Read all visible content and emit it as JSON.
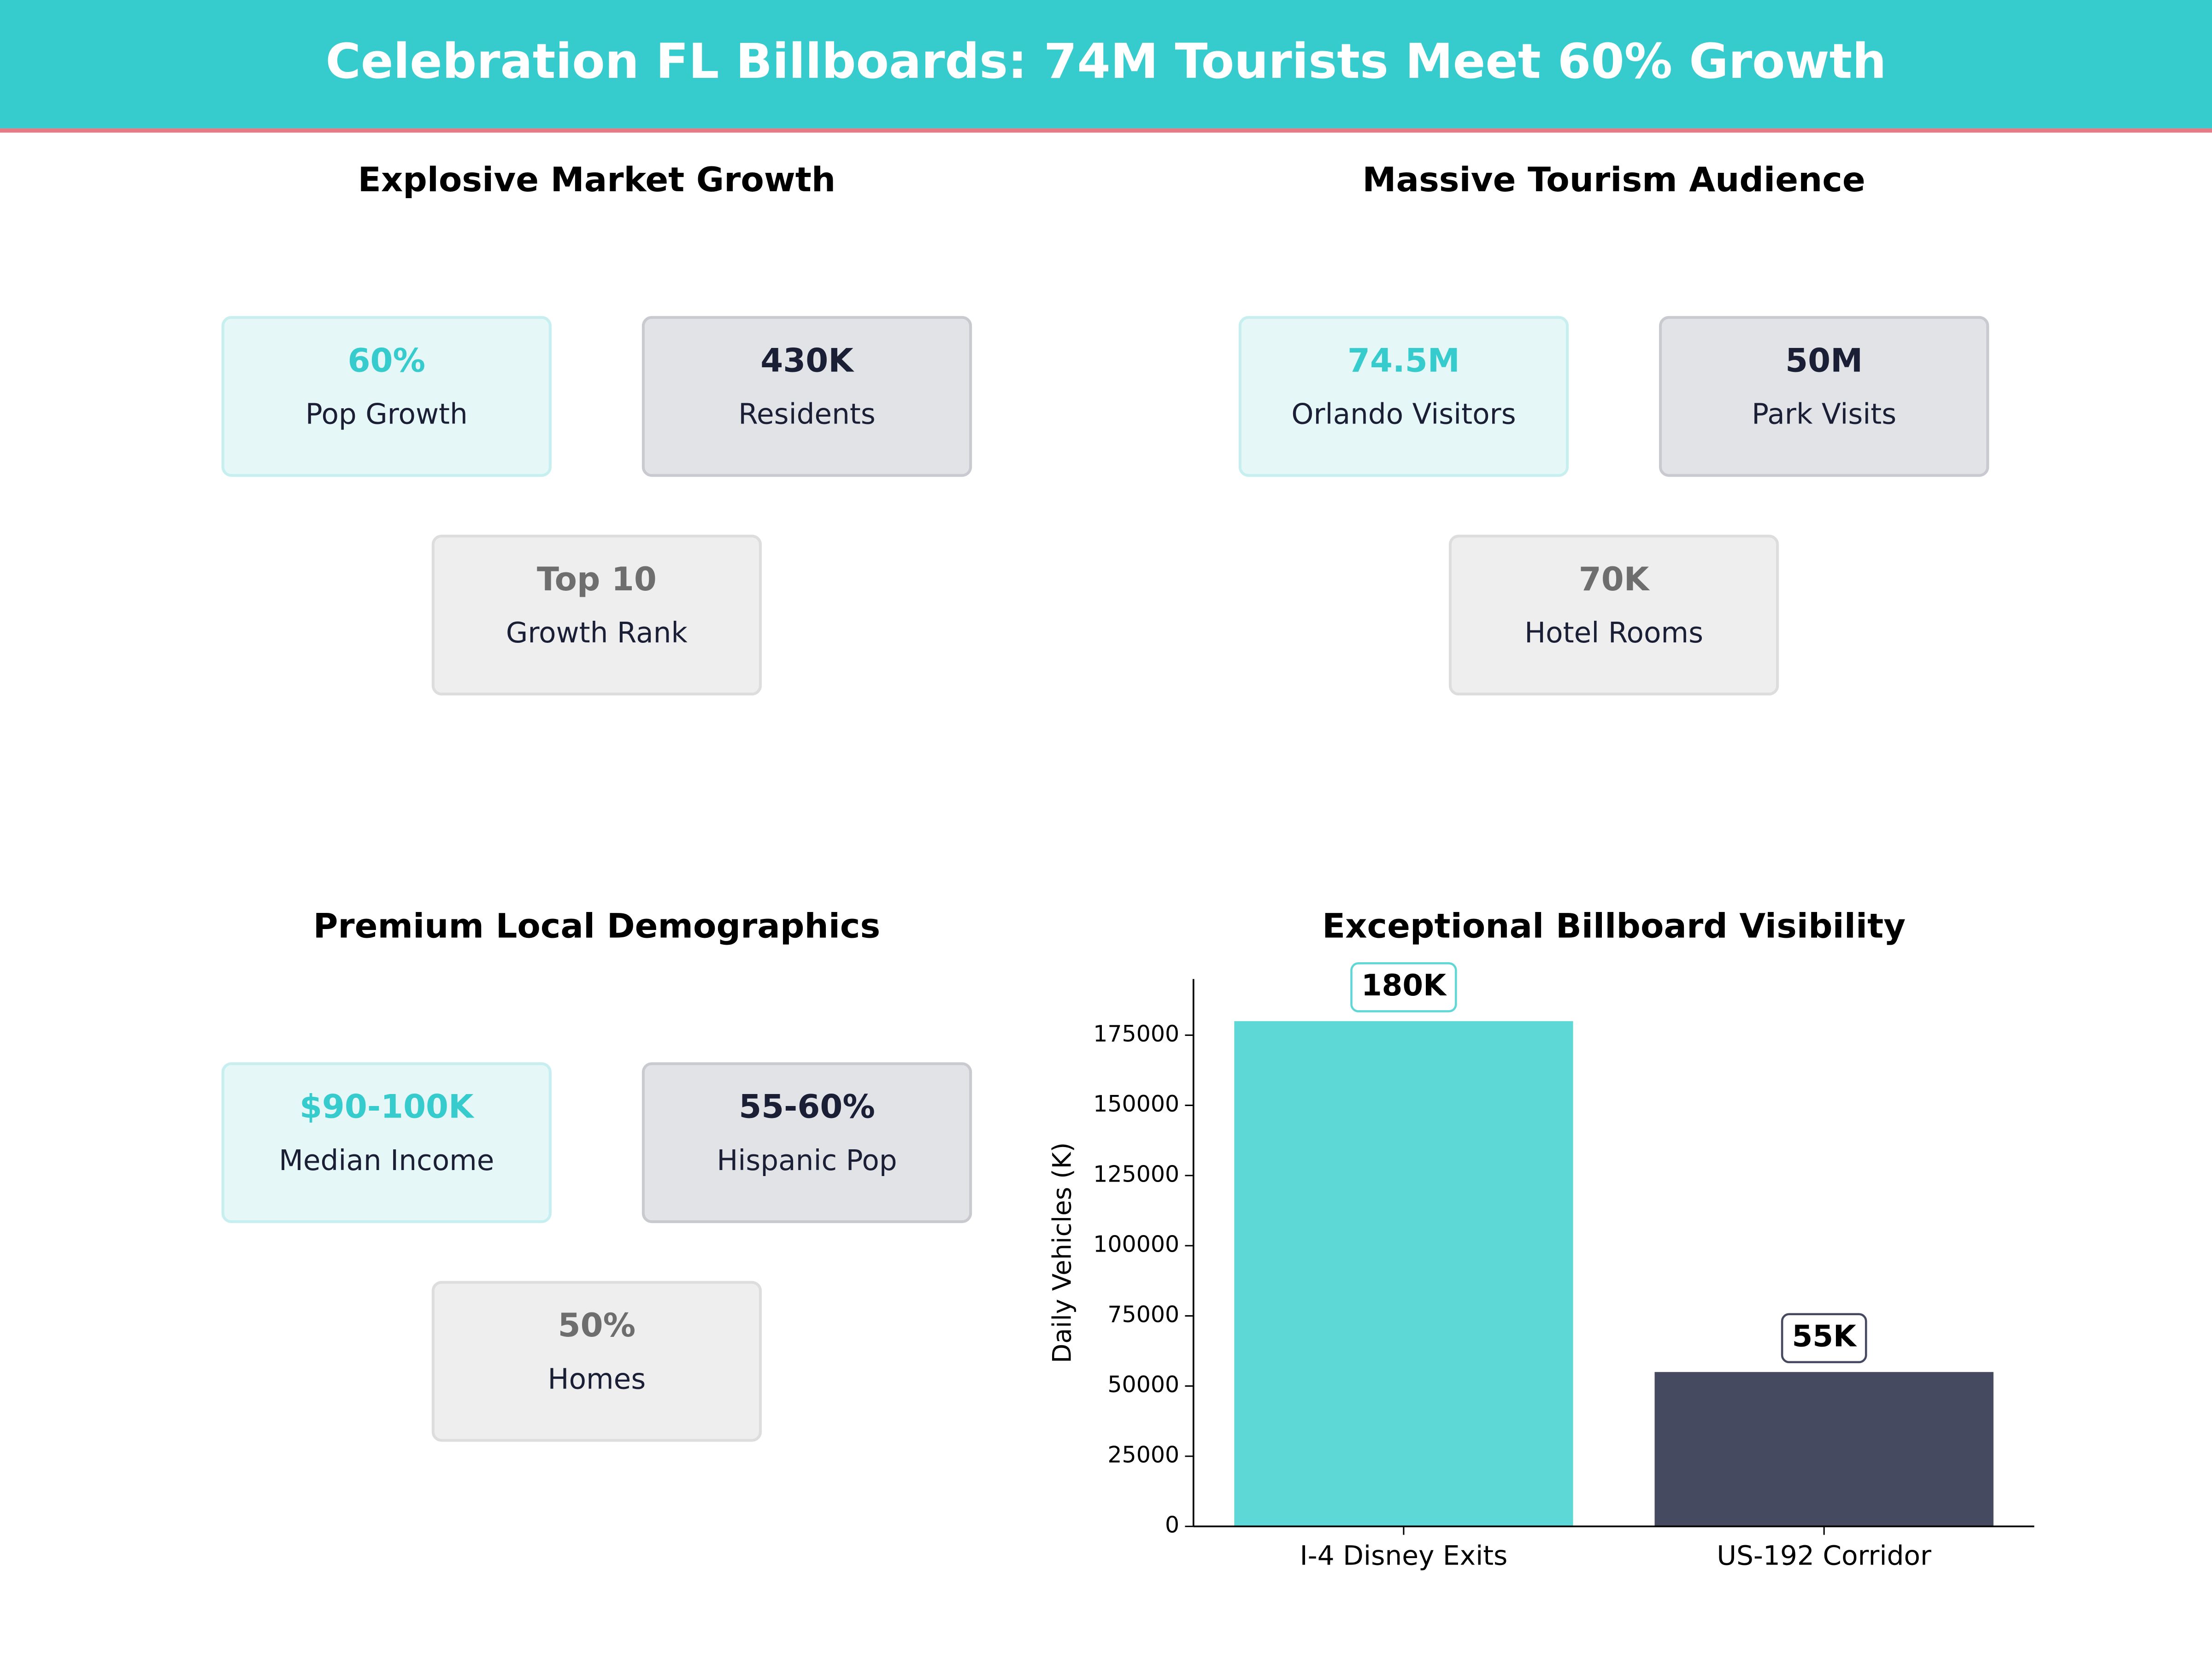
{
  "header": {
    "title": "Celebration FL Billboards: 74M Tourists Meet 60% Growth"
  },
  "panels": [
    {
      "title": "Explosive Market Growth",
      "cards": [
        {
          "value": "60%",
          "label": "Pop Growth"
        },
        {
          "value": "430K",
          "label": "Residents"
        },
        {
          "value": "Top 10",
          "label": "Growth Rank"
        }
      ]
    },
    {
      "title": "Massive Tourism Audience",
      "cards": [
        {
          "value": "74.5M",
          "label": "Orlando Visitors"
        },
        {
          "value": "50M",
          "label": "Park Visits"
        },
        {
          "value": "70K",
          "label": "Hotel Rooms"
        }
      ]
    },
    {
      "title": "Premium Local Demographics",
      "cards": [
        {
          "value": "$90-100K",
          "label": "Median Income"
        },
        {
          "value": "55-60%",
          "label": "Hispanic Pop"
        },
        {
          "value": "50%",
          "label": "Homes"
        }
      ]
    }
  ],
  "chart_data": {
    "type": "bar",
    "title": "Exceptional Billboard Visibility",
    "ylabel": "Daily Vehicles (K)",
    "categories": [
      "I-4 Disney Exits",
      "US-192 Corridor"
    ],
    "values": [
      180000,
      55000
    ],
    "value_labels": [
      "180K",
      "55K"
    ],
    "colors": [
      "#5ed8d6",
      "#464a60"
    ],
    "ylim": [
      0,
      195000
    ],
    "yticks": [
      0,
      25000,
      50000,
      75000,
      100000,
      125000,
      150000,
      175000
    ]
  }
}
